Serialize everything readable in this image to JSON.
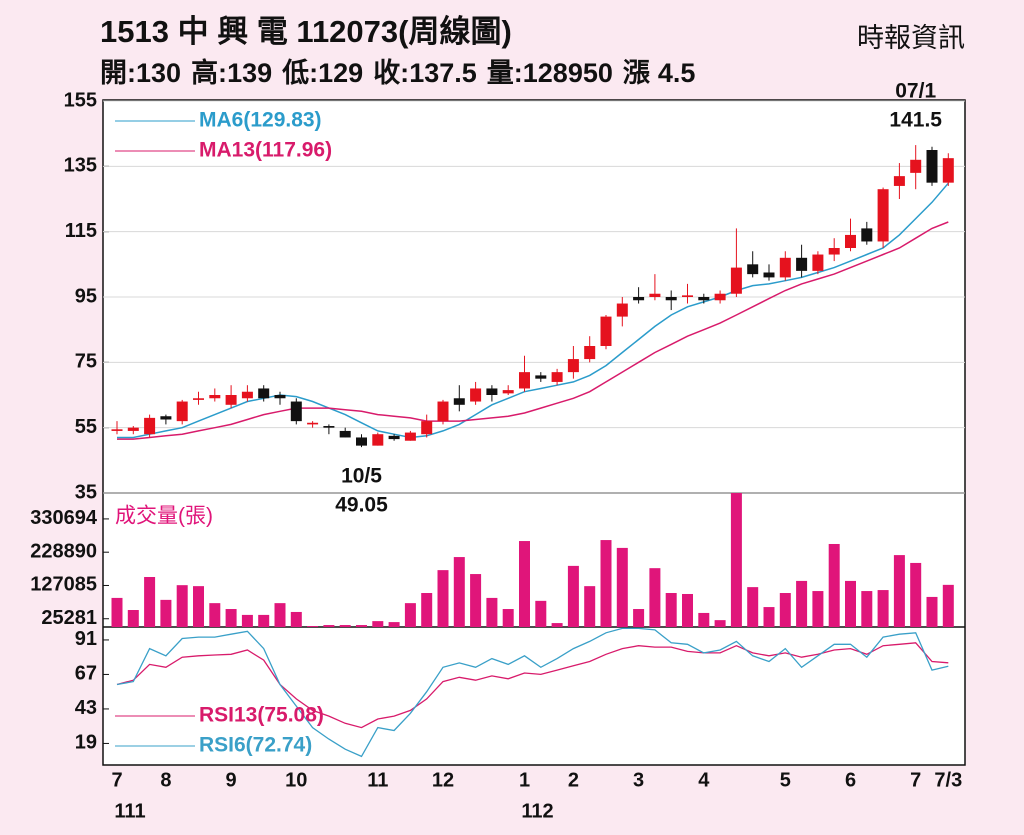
{
  "header": {
    "title": "1513  中 興 電 112073(周線圖)",
    "source": "時報資訊",
    "stats": [
      {
        "label": "開:",
        "value": 130
      },
      {
        "label": "高:",
        "value": 139
      },
      {
        "label": "低:",
        "value": 129
      },
      {
        "label": "收:",
        "value": 137.5
      },
      {
        "label": "量:",
        "value": 128950
      },
      {
        "label": "漲",
        "value": 4.5
      }
    ]
  },
  "chart_data": [
    {
      "type": "candlestick",
      "categories": [
        "7",
        null,
        null,
        "8",
        null,
        null,
        null,
        "9",
        null,
        null,
        null,
        "10",
        null,
        null,
        null,
        null,
        "11",
        null,
        null,
        null,
        "12",
        null,
        null,
        null,
        null,
        "1",
        null,
        null,
        "2",
        null,
        null,
        null,
        "3",
        null,
        null,
        null,
        "4",
        null,
        null,
        null,
        null,
        "5",
        null,
        null,
        null,
        "6",
        null,
        null,
        null,
        "7",
        null,
        "7/3"
      ],
      "year_labels": [
        "111",
        null,
        null,
        null,
        null,
        null,
        null,
        null,
        null,
        null,
        null,
        null,
        null,
        null,
        null,
        null,
        null,
        null,
        null,
        null,
        null,
        null,
        null,
        null,
        null,
        "112",
        null,
        null,
        null,
        null,
        null,
        null,
        null,
        null,
        null,
        null,
        null,
        null,
        null,
        null,
        null,
        null,
        null,
        null,
        null,
        null,
        null,
        null,
        null,
        null,
        null,
        null
      ],
      "open": [
        54,
        54,
        53,
        58.5,
        57,
        63.5,
        64,
        62,
        64,
        67,
        65,
        63,
        56,
        55.5,
        54,
        52,
        49.5,
        52.5,
        51,
        53,
        57,
        64,
        63,
        67,
        65.5,
        67,
        71,
        69,
        72,
        76,
        80,
        89,
        95,
        95,
        95,
        95,
        95,
        94,
        96,
        105,
        102.5,
        101,
        107,
        103,
        108,
        110,
        116,
        112,
        129,
        133,
        140,
        130
      ],
      "high": [
        57,
        55.5,
        59,
        59,
        63.5,
        66,
        67,
        68,
        68,
        68,
        66,
        64,
        57,
        56,
        55,
        53,
        53.5,
        53,
        54,
        59,
        63.5,
        68,
        69,
        68,
        68,
        77,
        72,
        73,
        80,
        83,
        89.5,
        95,
        98,
        102,
        97,
        99,
        96,
        97,
        116,
        109,
        105,
        109,
        111,
        109,
        113,
        119,
        118,
        128.5,
        136,
        141.5,
        141,
        139
      ],
      "low": [
        53,
        53,
        52,
        56,
        56,
        62,
        63,
        61,
        63,
        63,
        62,
        56,
        55,
        53,
        52,
        49.05,
        49.5,
        51,
        51,
        52,
        56,
        60,
        62,
        63,
        65,
        66,
        69,
        68,
        70,
        75,
        79,
        86,
        93,
        94,
        91,
        93,
        93,
        93,
        95,
        101,
        100,
        100,
        101,
        102,
        106,
        109,
        111,
        110,
        125,
        128,
        129,
        129
      ],
      "close": [
        54.5,
        55,
        58,
        57.5,
        63,
        64,
        65,
        65,
        66,
        64,
        64,
        57,
        56.5,
        55,
        52,
        49.5,
        53,
        51.5,
        53.5,
        57,
        63,
        62,
        67,
        65,
        66.5,
        72,
        70,
        72,
        76,
        80,
        89,
        93,
        94,
        96,
        94,
        95.5,
        94,
        96,
        104,
        102,
        101,
        107,
        103,
        108,
        110,
        114,
        112,
        128,
        132,
        137,
        130,
        137.5
      ],
      "up_color": "#e5121e",
      "down_color": "#111111",
      "series": [
        {
          "name": "MA6(129.83)",
          "color": "#2b9ccb",
          "values": [
            52,
            52,
            53,
            54,
            55,
            57,
            59,
            61,
            63,
            64,
            65,
            64.5,
            63,
            61,
            59,
            56.5,
            54,
            53,
            52,
            52.5,
            54,
            56,
            59,
            62,
            64,
            66,
            67,
            68,
            69,
            71,
            74,
            78,
            82,
            86,
            89.5,
            92,
            93.5,
            95,
            97,
            98.5,
            99,
            100,
            101,
            102.5,
            104,
            106,
            108,
            110,
            114,
            119,
            124,
            129.83
          ]
        },
        {
          "name": "MA13(117.96)",
          "color": "#d81b6b",
          "values": [
            51.5,
            51.5,
            52,
            52.5,
            53,
            54,
            55,
            56,
            57.5,
            59,
            60,
            61,
            61,
            61,
            60.5,
            60,
            59,
            58.5,
            58,
            57,
            57,
            57,
            57.5,
            58,
            58.5,
            59.5,
            61,
            62.5,
            64,
            66,
            69,
            72,
            75,
            78,
            80.5,
            83,
            85,
            87,
            89.5,
            92,
            94.5,
            97,
            99,
            100.5,
            102,
            104,
            106,
            108,
            110,
            113,
            116,
            117.96
          ]
        }
      ],
      "ylim": [
        35,
        155
      ],
      "yticks": [
        155,
        135,
        115,
        95,
        75,
        55,
        35
      ],
      "grid": true,
      "annotations": [
        {
          "date": "10/5",
          "value": 49.05
        },
        {
          "date": "07/1",
          "value": 141.5
        }
      ]
    },
    {
      "type": "bar",
      "title": "成交量(張)",
      "color": "#e0157a",
      "values": [
        89000,
        52000,
        153000,
        83000,
        128000,
        125000,
        73000,
        55000,
        37000,
        37000,
        73000,
        46000,
        3000,
        6000,
        6000,
        6000,
        18000,
        15000,
        73000,
        104000,
        174000,
        214000,
        162000,
        89000,
        55000,
        263000,
        80000,
        12000,
        187000,
        125000,
        266000,
        242000,
        55000,
        180000,
        104000,
        101000,
        43000,
        21000,
        410000,
        122000,
        61000,
        104000,
        141000,
        110000,
        254000,
        141000,
        110000,
        113000,
        220000,
        196000,
        92000,
        128950
      ],
      "ylim": [
        0,
        410000
      ],
      "yticks": [
        330694,
        228890,
        127085,
        25281
      ]
    },
    {
      "type": "line",
      "series": [
        {
          "name": "RSI13(75.08)",
          "color": "#d81b6b",
          "values": [
            60,
            63,
            74,
            72,
            79,
            80,
            80.5,
            81,
            84,
            77,
            60,
            50,
            42,
            38,
            33,
            30,
            36,
            38,
            42,
            50,
            62,
            65,
            63,
            66,
            64,
            68,
            67,
            70,
            73,
            76,
            81,
            85,
            87,
            86,
            86,
            83,
            82,
            82,
            87,
            82,
            80,
            82,
            79,
            81,
            84,
            85,
            81,
            87,
            88,
            89,
            76,
            75.08
          ]
        },
        {
          "name": "RSI6(72.74)",
          "color": "#3aa0c8",
          "values": [
            60,
            62,
            85,
            80,
            92,
            93,
            93,
            95,
            97,
            85,
            60,
            45,
            30,
            22,
            15,
            10,
            30,
            28,
            40,
            55,
            72,
            75,
            72,
            78,
            74,
            80,
            72,
            78,
            85,
            90,
            96,
            99,
            99,
            98,
            89,
            88,
            82,
            84,
            90,
            80,
            76,
            85,
            72,
            80,
            88,
            88,
            79,
            93,
            95,
            96,
            70,
            72.74
          ]
        }
      ],
      "ylim": [
        4,
        100
      ],
      "yticks": [
        91,
        67,
        43,
        19
      ]
    }
  ]
}
